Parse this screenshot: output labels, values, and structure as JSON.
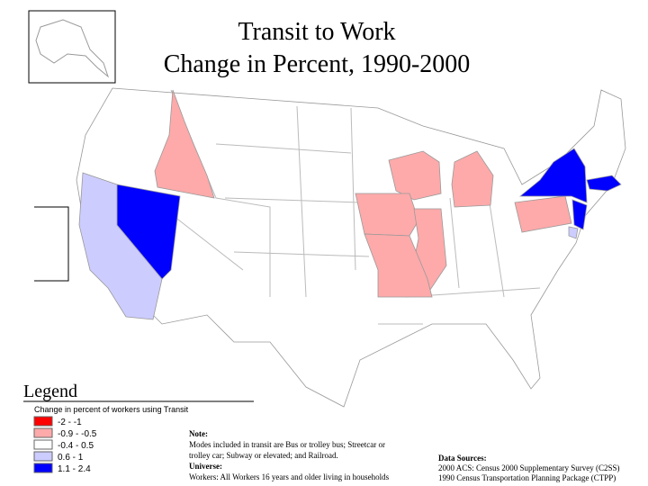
{
  "title": {
    "line1": "Transit to Work",
    "line2": "Change in Percent, 1990-2000"
  },
  "legend": {
    "heading": "Legend",
    "title": "Change in percent of workers using Transit",
    "items": [
      {
        "label": "-2 - -1",
        "color": "#ff0000"
      },
      {
        "label": "-0.9 - -0.5",
        "color": "#ffaaaa"
      },
      {
        "label": "-0.4 - 0.5",
        "color": "#ffffff"
      },
      {
        "label": "0.6 - 1",
        "color": "#ccccff"
      },
      {
        "label": "1.1 - 2.4",
        "color": "#0000ff"
      }
    ]
  },
  "note": {
    "heading": "Note:",
    "text1": "Modes included in transit are Bus or trolley bus; Streetcar or",
    "text2": "trolley car; Subway or elevated; and Railroad.",
    "universe_heading": "Universe:",
    "universe": "Workers: All Workers 16 years and older living in households"
  },
  "sources": {
    "heading": "Data Sources:",
    "line1": "2000 ACS: Census 2000 Supplementary Survey (C2SS)",
    "line2": "1990 Census Transportation Planning Package (CTPP)"
  }
}
